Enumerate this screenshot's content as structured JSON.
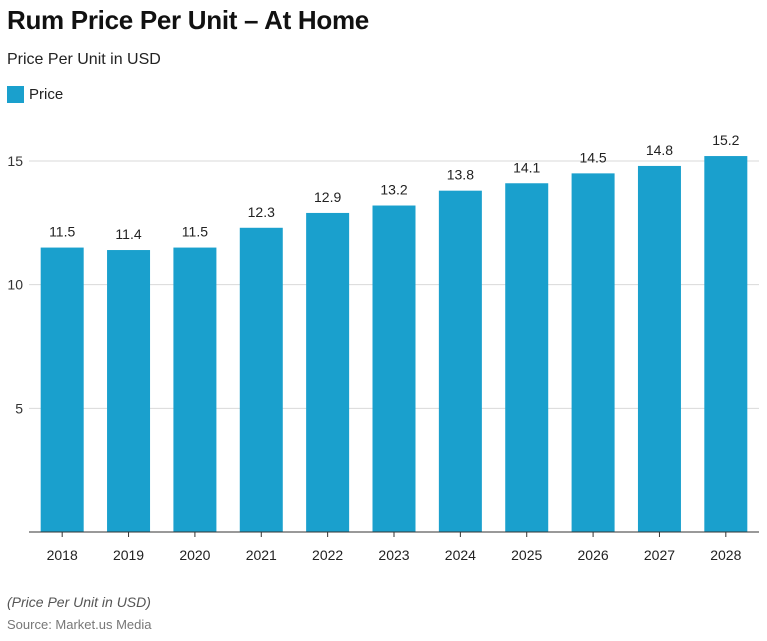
{
  "title": "Rum Price Per Unit – At Home",
  "subtitle": "Price Per Unit in USD",
  "note": "(Price Per Unit in USD)",
  "source": "Source: Market.us Media",
  "colors": {
    "bar": "#1aa0cd",
    "grid": "#d9d9d9",
    "axis": "#333333"
  },
  "chart_data": {
    "type": "bar",
    "categories": [
      "2018",
      "2019",
      "2020",
      "2021",
      "2022",
      "2023",
      "2024",
      "2025",
      "2026",
      "2027",
      "2028"
    ],
    "series": [
      {
        "name": "Price",
        "values": [
          11.5,
          11.4,
          11.5,
          12.3,
          12.9,
          13.2,
          13.8,
          14.1,
          14.5,
          14.8,
          15.2
        ]
      }
    ],
    "data_labels": [
      "11.5",
      "11.4",
      "11.5",
      "12.3",
      "12.9",
      "13.2",
      "13.8",
      "14.1",
      "14.5",
      "14.8",
      "15.2"
    ],
    "yticks": [
      5,
      10,
      15
    ],
    "ylim": [
      0,
      15
    ],
    "grid": true,
    "legend": "top-left"
  }
}
